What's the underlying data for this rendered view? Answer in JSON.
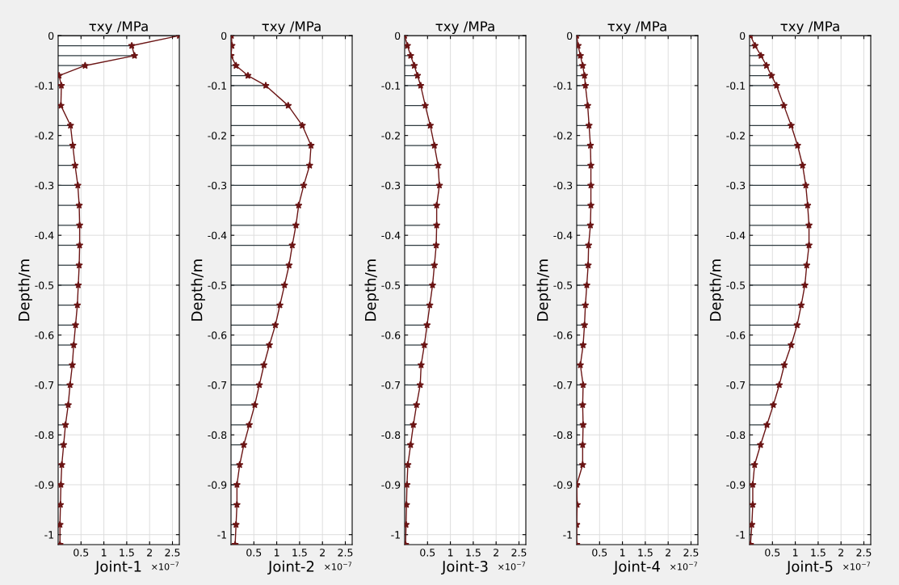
{
  "chart_data": [
    {
      "type": "line",
      "orientation": "horizontal",
      "title": "τxy /MPa",
      "xlabel": "Joint-1",
      "ylabel": "Depth/m",
      "annotations": [
        "×10$^{−7}$"
      ],
      "grid": true,
      "x": [
        0,
        -0.02,
        -0.04,
        -0.06,
        -0.08,
        -0.1,
        -0.14,
        -0.18,
        -0.22,
        -0.26,
        -0.3,
        -0.34,
        -0.38,
        -0.42,
        -0.46,
        -0.5,
        -0.54,
        -0.58,
        -0.62,
        -0.66,
        -0.7,
        -0.74,
        -0.78,
        -0.82,
        -0.86,
        -0.9,
        -0.94,
        -0.98,
        -1.02
      ],
      "series": [
        {
          "color": "#6b1515",
          "line_style": "solid",
          "values": [
            2.65,
            1.61,
            1.67,
            0.59,
            0.02,
            0.07,
            0.06,
            0.27,
            0.32,
            0.37,
            0.43,
            0.46,
            0.47,
            0.47,
            0.46,
            0.44,
            0.42,
            0.38,
            0.34,
            0.31,
            0.26,
            0.22,
            0.16,
            0.12,
            0.08,
            0.06,
            0.05,
            0.04,
            0.04
          ]
        },
        {
          "type": "lollipop",
          "color": "#6b1515",
          "marker": "star",
          "values": [
            2.65,
            1.61,
            1.67,
            0.59,
            0.02,
            0.07,
            0.06,
            0.27,
            0.32,
            0.37,
            0.43,
            0.46,
            0.47,
            0.47,
            0.46,
            0.44,
            0.42,
            0.38,
            0.34,
            0.31,
            0.26,
            0.22,
            0.16,
            0.12,
            0.08,
            0.06,
            0.05,
            0.04,
            0.04
          ]
        }
      ],
      "xlim": [
        0,
        2.65
      ],
      "xticks": [
        0.5,
        1,
        1.5,
        2,
        2.5
      ],
      "ylim": [
        -1.02,
        0
      ],
      "yticks": [
        0,
        -0.1,
        -0.2,
        -0.3,
        -0.4,
        -0.5,
        -0.6,
        -0.7,
        -0.8,
        -0.9,
        -1
      ]
    },
    {
      "type": "line",
      "orientation": "horizontal",
      "title": "τxy /MPa",
      "xlabel": "Joint-2",
      "ylabel": "Depth/m",
      "annotations": [
        "×10$^{−7}$"
      ],
      "grid": true,
      "x": [
        0,
        -0.02,
        -0.04,
        -0.06,
        -0.08,
        -0.1,
        -0.14,
        -0.18,
        -0.22,
        -0.26,
        -0.3,
        -0.34,
        -0.38,
        -0.42,
        -0.46,
        -0.5,
        -0.54,
        -0.58,
        -0.62,
        -0.66,
        -0.7,
        -0.74,
        -0.78,
        -0.82,
        -0.86,
        -0.9,
        -0.94,
        -0.98,
        -1.02
      ],
      "series": [
        {
          "color": "#6b1515",
          "line_style": "solid",
          "values": [
            0.01,
            0.02,
            0,
            0.11,
            0.37,
            0.76,
            1.25,
            1.56,
            1.75,
            1.72,
            1.59,
            1.48,
            1.42,
            1.34,
            1.27,
            1.17,
            1.07,
            0.97,
            0.84,
            0.72,
            0.62,
            0.52,
            0.4,
            0.28,
            0.19,
            0.13,
            0.13,
            0.11,
            0.09
          ]
        },
        {
          "type": "lollipop",
          "color": "#6b1515",
          "marker": "star",
          "values": [
            0.01,
            0.02,
            0,
            0.11,
            0.37,
            0.76,
            1.25,
            1.56,
            1.75,
            1.72,
            1.59,
            1.48,
            1.42,
            1.34,
            1.27,
            1.17,
            1.07,
            0.97,
            0.84,
            0.72,
            0.62,
            0.52,
            0.4,
            0.28,
            0.19,
            0.13,
            0.13,
            0.11,
            0.09
          ]
        }
      ],
      "xlim": [
        0,
        2.65
      ],
      "xticks": [
        0.5,
        1,
        1.5,
        2,
        2.5
      ],
      "ylim": [
        -1.02,
        0
      ],
      "yticks": [
        0,
        -0.1,
        -0.2,
        -0.3,
        -0.4,
        -0.5,
        -0.6,
        -0.7,
        -0.8,
        -0.9,
        -1
      ]
    },
    {
      "type": "line",
      "orientation": "horizontal",
      "title": "τxy /MPa",
      "xlabel": "Joint-3",
      "ylabel": "Depth/m",
      "annotations": [
        "×10$^{−7}$"
      ],
      "grid": true,
      "x": [
        0,
        -0.02,
        -0.04,
        -0.06,
        -0.08,
        -0.1,
        -0.14,
        -0.18,
        -0.22,
        -0.26,
        -0.3,
        -0.34,
        -0.38,
        -0.42,
        -0.46,
        -0.5,
        -0.54,
        -0.58,
        -0.62,
        -0.66,
        -0.7,
        -0.74,
        -0.78,
        -0.82,
        -0.86,
        -0.9,
        -0.94,
        -0.98,
        -1.02
      ],
      "series": [
        {
          "color": "#6b1515",
          "line_style": "solid",
          "values": [
            0,
            0.06,
            0.13,
            0.21,
            0.28,
            0.35,
            0.45,
            0.56,
            0.65,
            0.73,
            0.76,
            0.7,
            0.7,
            0.69,
            0.65,
            0.61,
            0.55,
            0.49,
            0.43,
            0.36,
            0.34,
            0.26,
            0.19,
            0.13,
            0.07,
            0.05,
            0.04,
            0.03,
            0.02
          ]
        },
        {
          "type": "lollipop",
          "color": "#6b1515",
          "marker": "star",
          "values": [
            0,
            0.06,
            0.13,
            0.21,
            0.28,
            0.35,
            0.45,
            0.56,
            0.65,
            0.73,
            0.76,
            0.7,
            0.7,
            0.69,
            0.65,
            0.61,
            0.55,
            0.49,
            0.43,
            0.36,
            0.34,
            0.26,
            0.19,
            0.13,
            0.07,
            0.05,
            0.04,
            0.03,
            0.02
          ]
        }
      ],
      "xlim": [
        0,
        2.65
      ],
      "xticks": [
        0.5,
        1,
        1.5,
        2,
        2.5
      ],
      "ylim": [
        -1.02,
        0
      ],
      "yticks": [
        0,
        -0.1,
        -0.2,
        -0.3,
        -0.4,
        -0.5,
        -0.6,
        -0.7,
        -0.8,
        -0.9,
        -1
      ]
    },
    {
      "type": "line",
      "orientation": "horizontal",
      "title": "τxy /MPa",
      "xlabel": "Joint-4",
      "ylabel": "Depth/m",
      "annotations": [
        "×10$^{−7}$"
      ],
      "grid": true,
      "x": [
        0,
        -0.02,
        -0.04,
        -0.06,
        -0.08,
        -0.1,
        -0.14,
        -0.18,
        -0.22,
        -0.26,
        -0.3,
        -0.34,
        -0.38,
        -0.42,
        -0.46,
        -0.5,
        -0.54,
        -0.58,
        -0.62,
        -0.66,
        -0.7,
        -0.74,
        -0.78,
        -0.82,
        -0.86,
        -0.9,
        -0.94,
        -0.98,
        -1.02
      ],
      "series": [
        {
          "color": "#6b1515",
          "line_style": "solid",
          "values": [
            0,
            0.03,
            0.08,
            0.13,
            0.17,
            0.19,
            0.24,
            0.27,
            0.3,
            0.31,
            0.31,
            0.31,
            0.3,
            0.26,
            0.25,
            0.22,
            0.19,
            0.17,
            0.14,
            0.08,
            0.14,
            0.13,
            0.14,
            0.13,
            0.13,
            0,
            0.01,
            0,
            0
          ]
        },
        {
          "type": "lollipop",
          "color": "#6b1515",
          "marker": "star",
          "values": [
            0,
            0.03,
            0.08,
            0.13,
            0.17,
            0.19,
            0.24,
            0.27,
            0.3,
            0.31,
            0.31,
            0.31,
            0.3,
            0.26,
            0.25,
            0.22,
            0.19,
            0.17,
            0.14,
            0.08,
            0.14,
            0.13,
            0.14,
            0.13,
            0.13,
            0,
            0.01,
            0,
            0
          ]
        }
      ],
      "xlim": [
        0,
        2.65
      ],
      "xticks": [
        0.5,
        1,
        1.5,
        2,
        2.5
      ],
      "ylim": [
        -1.02,
        0
      ],
      "yticks": [
        0,
        -0.1,
        -0.2,
        -0.3,
        -0.4,
        -0.5,
        -0.6,
        -0.7,
        -0.8,
        -0.9,
        -1
      ]
    },
    {
      "type": "line",
      "orientation": "horizontal",
      "title": "τxy /MPa",
      "xlabel": "Joint-5",
      "ylabel": "Depth/m",
      "annotations": [
        "×10$^{−7}$"
      ],
      "grid": true,
      "x": [
        0,
        -0.02,
        -0.04,
        -0.06,
        -0.08,
        -0.1,
        -0.14,
        -0.18,
        -0.22,
        -0.26,
        -0.3,
        -0.34,
        -0.38,
        -0.42,
        -0.46,
        -0.5,
        -0.54,
        -0.58,
        -0.62,
        -0.66,
        -0.7,
        -0.74,
        -0.78,
        -0.82,
        -0.86,
        -0.9,
        -0.94,
        -0.98,
        -1.02
      ],
      "series": [
        {
          "color": "#6b1515",
          "line_style": "solid",
          "values": [
            0.02,
            0.12,
            0.25,
            0.37,
            0.48,
            0.59,
            0.75,
            0.91,
            1.05,
            1.16,
            1.23,
            1.27,
            1.3,
            1.3,
            1.25,
            1.21,
            1.13,
            1.04,
            0.91,
            0.76,
            0.65,
            0.52,
            0.38,
            0.24,
            0.11,
            0.07,
            0.07,
            0.05,
            0.02
          ]
        },
        {
          "type": "lollipop",
          "color": "#6b1515",
          "marker": "star",
          "values": [
            0.02,
            0.12,
            0.25,
            0.37,
            0.48,
            0.59,
            0.75,
            0.91,
            1.05,
            1.16,
            1.23,
            1.27,
            1.3,
            1.3,
            1.25,
            1.21,
            1.13,
            1.04,
            0.91,
            0.76,
            0.65,
            0.52,
            0.38,
            0.24,
            0.11,
            0.07,
            0.07,
            0.05,
            0.02
          ]
        }
      ],
      "xlim": [
        0,
        2.65
      ],
      "xticks": [
        0.5,
        1,
        1.5,
        2,
        2.5
      ],
      "ylim": [
        -1.02,
        0
      ],
      "yticks": [
        0,
        -0.1,
        -0.2,
        -0.3,
        -0.4,
        -0.5,
        -0.6,
        -0.7,
        -0.8,
        -0.9,
        -1
      ]
    }
  ]
}
